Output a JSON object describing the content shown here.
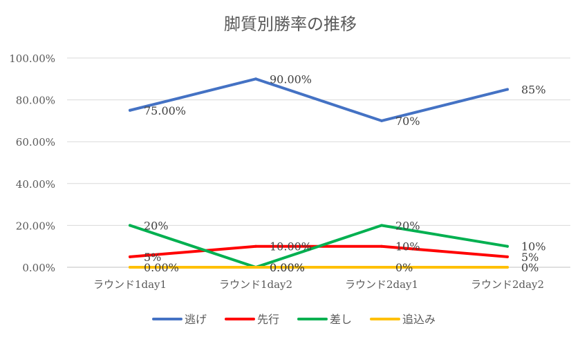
{
  "chart_data": {
    "type": "line",
    "title": "脚質別勝率の推移",
    "categories": [
      "ラウンド1day1",
      "ラウンド1day2",
      "ラウンド2day1",
      "ラウンド2day2"
    ],
    "ylim": [
      0,
      100
    ],
    "yticks": [
      0,
      20,
      40,
      60,
      80,
      100
    ],
    "ytick_labels": [
      "0.00%",
      "20.00%",
      "40.00%",
      "60.00%",
      "80.00%",
      "100.00%"
    ],
    "grid": true,
    "legend_position": "bottom",
    "series": [
      {
        "name": "逃げ",
        "color": "#4472C4",
        "values": [
          75,
          90,
          70,
          85
        ],
        "labels": [
          "75.00%",
          "90.00%",
          "70%",
          "85%"
        ]
      },
      {
        "name": "先行",
        "color": "#FF0000",
        "values": [
          5,
          10,
          10,
          5
        ],
        "labels": [
          "5%",
          "10.00%",
          "10%",
          "5%"
        ]
      },
      {
        "name": "差し",
        "color": "#00B050",
        "values": [
          20,
          0,
          20,
          10
        ],
        "labels": [
          "20%",
          "0.00%",
          "20%",
          "10%"
        ]
      },
      {
        "name": "追込み",
        "color": "#FFC000",
        "values": [
          0,
          0,
          0,
          0
        ],
        "labels": [
          "0.00%",
          "0.00%",
          "0%",
          "0%"
        ]
      }
    ]
  }
}
